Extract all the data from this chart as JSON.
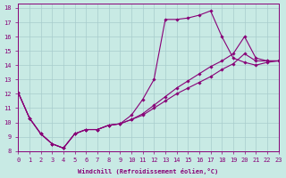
{
  "xlabel": "Windchill (Refroidissement éolien,°C)",
  "bg_color": "#c8eae4",
  "grid_color": "#a8cccc",
  "line_color": "#880077",
  "xlim": [
    0,
    23
  ],
  "ylim": [
    8,
    18.3
  ],
  "xticks": [
    0,
    1,
    2,
    3,
    4,
    5,
    6,
    7,
    8,
    9,
    10,
    11,
    12,
    13,
    14,
    15,
    16,
    17,
    18,
    19,
    20,
    21,
    22,
    23
  ],
  "yticks": [
    8,
    9,
    10,
    11,
    12,
    13,
    14,
    15,
    16,
    17,
    18
  ],
  "lines": [
    {
      "x": [
        0,
        1,
        2,
        3,
        4,
        5,
        6,
        7,
        8,
        9,
        10,
        11,
        12,
        13,
        14,
        15,
        16,
        17,
        18,
        19,
        20,
        21,
        22,
        23
      ],
      "y": [
        12.1,
        10.3,
        9.2,
        8.5,
        8.2,
        9.2,
        9.5,
        9.5,
        9.8,
        9.9,
        10.5,
        11.6,
        13.0,
        17.2,
        17.2,
        17.3,
        17.5,
        17.8,
        16.0,
        14.5,
        14.2,
        14.0,
        14.2,
        14.3
      ]
    },
    {
      "x": [
        0,
        1,
        2,
        3,
        4,
        5,
        6,
        7,
        8,
        9,
        10,
        11,
        12,
        13,
        14,
        15,
        16,
        17,
        18,
        19,
        20,
        21,
        22,
        23
      ],
      "y": [
        12.1,
        10.3,
        9.2,
        8.5,
        8.2,
        9.2,
        9.5,
        9.5,
        9.8,
        9.9,
        10.2,
        10.6,
        11.2,
        11.8,
        12.4,
        12.9,
        13.4,
        13.9,
        14.3,
        14.8,
        16.0,
        14.5,
        14.3,
        14.3
      ]
    },
    {
      "x": [
        0,
        1,
        2,
        3,
        4,
        5,
        6,
        7,
        8,
        9,
        10,
        11,
        12,
        13,
        14,
        15,
        16,
        17,
        18,
        19,
        20,
        21,
        22,
        23
      ],
      "y": [
        12.1,
        10.3,
        9.2,
        8.5,
        8.2,
        9.2,
        9.5,
        9.5,
        9.8,
        9.9,
        10.2,
        10.5,
        11.0,
        11.5,
        12.0,
        12.4,
        12.8,
        13.2,
        13.7,
        14.1,
        14.8,
        14.3,
        14.3,
        14.3
      ]
    }
  ]
}
